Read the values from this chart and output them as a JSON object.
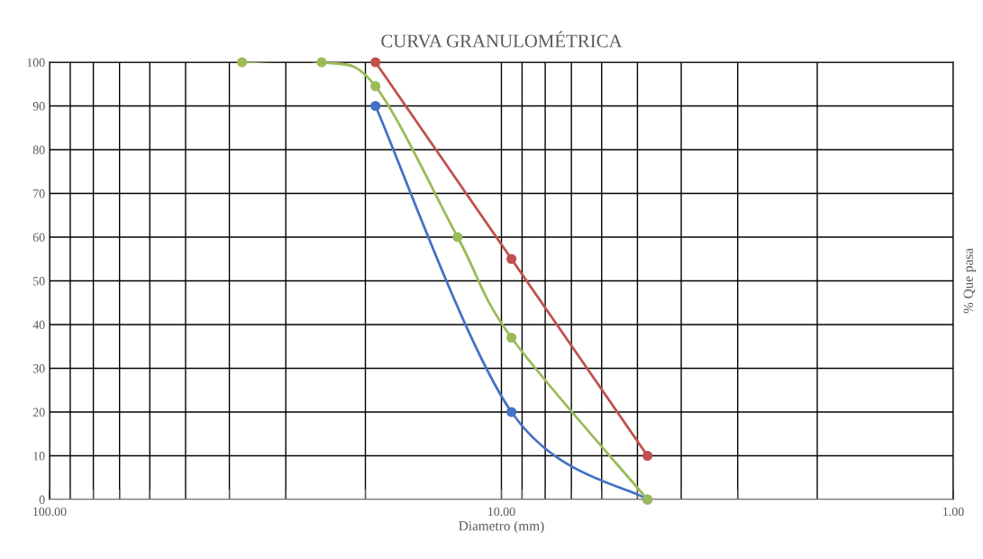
{
  "chart_data": {
    "type": "line",
    "title": "CURVA GRANULOMÉTRICA",
    "xlabel": "Diametro (mm)",
    "ylabel": "% Que pasa",
    "log": "x",
    "grid": true,
    "marker": "circle",
    "line_style": "solid",
    "legend": false,
    "xlim": [
      100,
      1
    ],
    "xticks": [
      {
        "value": 100,
        "label": "100.00"
      },
      {
        "value": 90,
        "label": null
      },
      {
        "value": 80,
        "label": null
      },
      {
        "value": 70,
        "label": null
      },
      {
        "value": 60,
        "label": null
      },
      {
        "value": 50,
        "label": null
      },
      {
        "value": 40,
        "label": null
      },
      {
        "value": 30,
        "label": null
      },
      {
        "value": 20,
        "label": null
      },
      {
        "value": 10,
        "label": "10.00"
      },
      {
        "value": 9,
        "label": null
      },
      {
        "value": 8,
        "label": null
      },
      {
        "value": 7,
        "label": null
      },
      {
        "value": 6,
        "label": null
      },
      {
        "value": 5,
        "label": null
      },
      {
        "value": 4,
        "label": null
      },
      {
        "value": 3,
        "label": null
      },
      {
        "value": 2,
        "label": null
      },
      {
        "value": 1,
        "label": "1.00"
      }
    ],
    "ylim": [
      0,
      100
    ],
    "yticks": [
      0,
      10,
      20,
      30,
      40,
      50,
      60,
      70,
      80,
      90,
      100
    ],
    "series": [
      {
        "color": "#4472c4",
        "x": [
          19,
          9.5,
          4.75
        ],
        "values": [
          90,
          20,
          0
        ]
      },
      {
        "color": "#c0504d",
        "x": [
          19,
          9.5,
          4.75
        ],
        "values": [
          100,
          55,
          10
        ]
      },
      {
        "color": "#9bbb59",
        "x": [
          37.5,
          25,
          19,
          12.5,
          9.5,
          4.75
        ],
        "values": [
          100,
          100,
          94.5,
          60,
          37,
          0
        ]
      }
    ]
  }
}
